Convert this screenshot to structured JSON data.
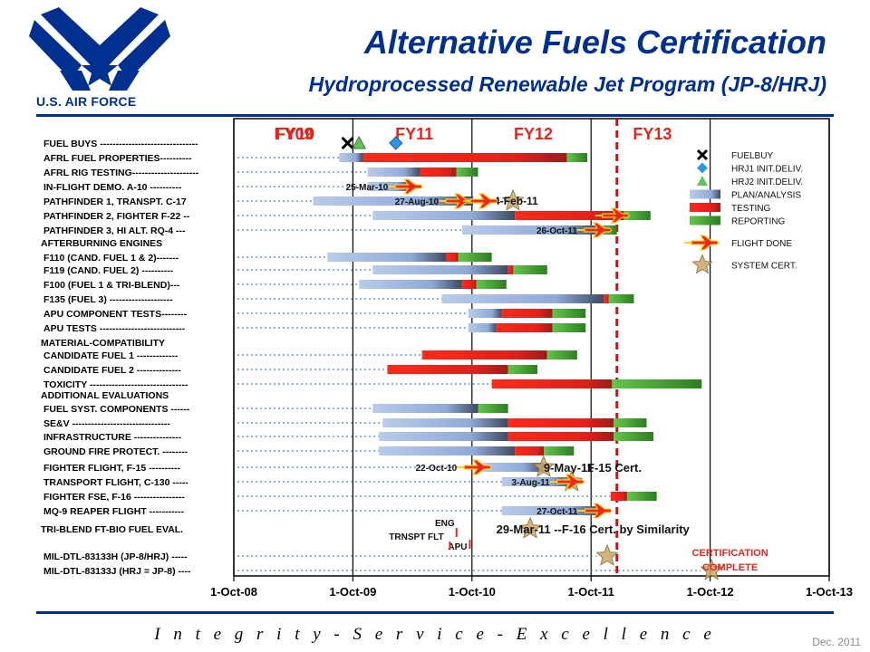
{
  "header": {
    "title": "Alternative Fuels Certification",
    "subtitle": "Hydroprocessed Renewable Jet Program (JP-8/HRJ)",
    "logo_text": "U.S. AIR FORCE"
  },
  "footer": {
    "motto": "I n t e g r i t y  -  S e r v i c e  -  E x c e l l e n c e",
    "date": "Dec. 2011"
  },
  "colors": {
    "plan": "#8fa9d8",
    "testing": "#e8231d",
    "reporting": "#4f9a2a",
    "flight": "#f0261d",
    "cert_star": "#c9a86a",
    "fy_label": "#e0261d",
    "brand": "#00308f"
  },
  "chart_data": {
    "type": "gantt",
    "x_axis": {
      "tick_labels": [
        "1-Oct-08",
        "1-Oct-09",
        "1-Oct-10",
        "1-Oct-11",
        "1-Oct-12",
        "1-Oct-13"
      ],
      "range": [
        "2008-10-01",
        "2013-10-01"
      ]
    },
    "fiscal_years": [
      "FY09",
      "FY10",
      "FY11",
      "FY12",
      "FY13"
    ],
    "legend": [
      {
        "label": "FUELBUY",
        "marker": "x"
      },
      {
        "label": "HRJ1 INIT.DELIV.",
        "marker": "diamond"
      },
      {
        "label": "HRJ2 INIT.DELIV.",
        "marker": "triangle"
      },
      {
        "label": "PLAN/ANALYSIS",
        "marker": "plan"
      },
      {
        "label": "TESTING",
        "marker": "testing"
      },
      {
        "label": "REPORTING",
        "marker": "reporting"
      },
      {
        "label": "FLIGHT DONE",
        "marker": "flight"
      },
      {
        "label": "SYSTEM CERT.",
        "marker": "star"
      }
    ],
    "rows": [
      {
        "label": "FUEL BUYS -------------------------------",
        "y": 158,
        "markers": [
          {
            "t": "x",
            "d": "2009-09-15"
          },
          {
            "t": "triangle",
            "d": "2009-10-20"
          },
          {
            "t": "diamond",
            "d": "2010-02-10"
          }
        ]
      },
      {
        "label": "AFRL FUEL PROPERTIES----------",
        "y": 174,
        "segments": [
          {
            "t": "plan",
            "s": "2009-08-20",
            "e": "2009-11-01"
          },
          {
            "t": "testing",
            "s": "2009-11-01",
            "e": "2011-07-20"
          },
          {
            "t": "reporting",
            "s": "2011-07-20",
            "e": "2011-09-20"
          }
        ]
      },
      {
        "label": "AFRL RIG TESTING---------------------",
        "y": 190,
        "segments": [
          {
            "t": "plan",
            "s": "2009-11-15",
            "e": "2010-04-25"
          },
          {
            "t": "testing",
            "s": "2010-04-25",
            "e": "2010-08-15"
          },
          {
            "t": "reporting",
            "s": "2010-08-15",
            "e": "2010-10-20"
          }
        ]
      },
      {
        "label": "IN-FLIGHT DEMO. A-10 ----------",
        "y": 206,
        "segments": [
          {
            "t": "plan",
            "s": "2009-11-15",
            "e": "2010-03-25"
          }
        ],
        "flights": [
          {
            "d": "2010-03-25",
            "label": "25-Mar-10",
            "label_side": "left"
          }
        ]
      },
      {
        "label": "PATHFINDER 1, TRANSPT. C-17",
        "y": 222,
        "segments": [
          {
            "t": "plan",
            "s": "2009-06-01",
            "e": "2010-10-05"
          }
        ],
        "flights": [
          {
            "d": "2010-08-27",
            "label": "27-Aug-10",
            "label_side": "left"
          },
          {
            "d": "2010-11-10",
            "label": "4-Feb-11",
            "label_side": "right"
          }
        ],
        "stars": [
          "2011-02-04"
        ]
      },
      {
        "label": "PATHFINDER 2, FIGHTER F-22 --",
        "y": 238,
        "segments": [
          {
            "t": "plan",
            "s": "2009-12-01",
            "e": "2011-02-10"
          },
          {
            "t": "testing",
            "s": "2011-02-10",
            "e": "2012-01-10"
          },
          {
            "t": "reporting",
            "s": "2012-01-10",
            "e": "2012-04-01"
          }
        ],
        "flights": [
          {
            "d": "2011-12-20",
            "label": "",
            "label_side": "right"
          }
        ]
      },
      {
        "label": "PATHFINDER 3, HI ALT. RQ-4 ---",
        "y": 254,
        "segments": [
          {
            "t": "plan",
            "s": "2010-09-01",
            "e": "2011-10-26"
          },
          {
            "t": "reporting",
            "s": "2011-10-26",
            "e": "2011-12-20"
          }
        ],
        "flights": [
          {
            "d": "2011-10-26",
            "label": "26-Oct-11",
            "label_side": "left"
          }
        ]
      },
      {
        "label": "AFTERBURNING ENGINES",
        "y": 268,
        "heading": true
      },
      {
        "label": "F110 (CAND. FUEL 1 & 2)-------",
        "y": 284,
        "segments": [
          {
            "t": "plan",
            "s": "2009-07-15",
            "e": "2010-07-15"
          },
          {
            "t": "testing",
            "s": "2010-07-15",
            "e": "2010-08-20"
          },
          {
            "t": "reporting",
            "s": "2010-08-20",
            "e": "2010-12-01"
          }
        ]
      },
      {
        "label": "F119 (CAND. FUEL 2) ----------",
        "y": 298,
        "segments": [
          {
            "t": "plan",
            "s": "2009-12-01",
            "e": "2011-01-20"
          },
          {
            "t": "testing",
            "s": "2011-01-20",
            "e": "2011-02-05"
          },
          {
            "t": "reporting",
            "s": "2011-02-05",
            "e": "2011-05-20"
          }
        ]
      },
      {
        "label": "F100 (FUEL 1 & TRI-BLEND)---",
        "y": 314,
        "segments": [
          {
            "t": "plan",
            "s": "2009-10-20",
            "e": "2010-09-01"
          },
          {
            "t": "testing",
            "s": "2010-09-01",
            "e": "2010-10-15"
          },
          {
            "t": "reporting",
            "s": "2010-10-15",
            "e": "2011-01-15"
          }
        ]
      },
      {
        "label": "F135 (FUEL 3) --------------------",
        "y": 330,
        "segments": [
          {
            "t": "plan",
            "s": "2010-07-01",
            "e": "2011-11-10"
          },
          {
            "t": "testing",
            "s": "2011-11-10",
            "e": "2011-11-25"
          },
          {
            "t": "reporting",
            "s": "2011-11-25",
            "e": "2012-02-10"
          }
        ]
      },
      {
        "label": "APU COMPONENT TESTS--------",
        "y": 346,
        "segments": [
          {
            "t": "plan",
            "s": "2010-09-20",
            "e": "2011-01-01"
          },
          {
            "t": "testing",
            "s": "2011-01-01",
            "e": "2011-06-05"
          },
          {
            "t": "reporting",
            "s": "2011-06-05",
            "e": "2011-09-15"
          }
        ]
      },
      {
        "label": "APU TESTS ---------------------------",
        "y": 362,
        "segments": [
          {
            "t": "plan",
            "s": "2010-09-20",
            "e": "2010-12-15"
          },
          {
            "t": "testing",
            "s": "2010-12-15",
            "e": "2011-06-05"
          },
          {
            "t": "reporting",
            "s": "2011-06-05",
            "e": "2011-09-15"
          }
        ]
      },
      {
        "label": "MATERIAL-COMPATIBILITY",
        "y": 378,
        "heading": true
      },
      {
        "label": "CANDIDATE FUEL 1 -------------",
        "y": 392,
        "segments": [
          {
            "t": "testing",
            "s": "2010-05-01",
            "e": "2011-05-20"
          },
          {
            "t": "reporting",
            "s": "2011-05-20",
            "e": "2011-08-20"
          }
        ]
      },
      {
        "label": "CANDIDATE FUEL 2 --------------",
        "y": 408,
        "segments": [
          {
            "t": "testing",
            "s": "2010-01-15",
            "e": "2011-01-20"
          },
          {
            "t": "reporting",
            "s": "2011-01-20",
            "e": "2011-04-20"
          }
        ]
      },
      {
        "label": "TOXICITY -------------------------------",
        "y": 424,
        "segments": [
          {
            "t": "testing",
            "s": "2010-12-01",
            "e": "2011-12-05"
          },
          {
            "t": "reporting",
            "s": "2011-12-05",
            "e": "2012-09-05"
          }
        ]
      },
      {
        "label": "ADDITIONAL EVALUATIONS",
        "y": 436,
        "heading": true
      },
      {
        "label": "FUEL SYST. COMPONENTS ------",
        "y": 451,
        "segments": [
          {
            "t": "plan",
            "s": "2009-12-01",
            "e": "2010-10-20"
          },
          {
            "t": "reporting",
            "s": "2010-10-20",
            "e": "2011-01-20"
          }
        ]
      },
      {
        "label": "SE&V -------------------------------",
        "y": 467,
        "segments": [
          {
            "t": "plan",
            "s": "2010-01-01",
            "e": "2011-01-20"
          },
          {
            "t": "testing",
            "s": "2011-01-20",
            "e": "2011-12-10"
          },
          {
            "t": "reporting",
            "s": "2011-12-10",
            "e": "2012-03-20"
          }
        ]
      },
      {
        "label": "INFRASTRUCTURE ---------------",
        "y": 482,
        "segments": [
          {
            "t": "plan",
            "s": "2009-12-20",
            "e": "2011-01-20"
          },
          {
            "t": "testing",
            "s": "2011-01-20",
            "e": "2011-12-10"
          },
          {
            "t": "reporting",
            "s": "2011-12-10",
            "e": "2012-04-10"
          }
        ]
      },
      {
        "label": "GROUND FIRE PROTECT. --------",
        "y": 498,
        "segments": [
          {
            "t": "plan",
            "s": "2009-12-20",
            "e": "2011-02-10"
          },
          {
            "t": "testing",
            "s": "2011-02-10",
            "e": "2011-05-10"
          },
          {
            "t": "reporting",
            "s": "2011-05-10",
            "e": "2011-08-10"
          }
        ]
      },
      {
        "label": "FIGHTER FLIGHT, F-15 ----------",
        "y": 516,
        "segments": [
          {
            "t": "plan",
            "s": "2010-10-22",
            "e": "2011-05-09"
          }
        ],
        "flights": [
          {
            "d": "2010-10-22",
            "label": "22-Oct-10",
            "label_side": "left"
          }
        ],
        "stars": [
          "2011-05-09"
        ],
        "annotations": [
          {
            "d": "2011-05-09",
            "text": "9-May-11"
          },
          {
            "d": "2011-09-20",
            "text": "F-15 Cert."
          }
        ]
      },
      {
        "label": "TRANSPORT FLIGHT, C-130 -----",
        "y": 532,
        "segments": [
          {
            "t": "plan",
            "s": "2011-01-01",
            "e": "2011-08-03"
          }
        ],
        "flights": [
          {
            "d": "2011-08-03",
            "label": "3-Aug-11",
            "label_side": "left"
          }
        ],
        "stars": [
          "2011-08-03"
        ]
      },
      {
        "label": "FIGHTER FSE, F-16 ----------------",
        "y": 548,
        "segments": [
          {
            "t": "testing",
            "s": "2011-12-01",
            "e": "2012-01-20"
          },
          {
            "t": "reporting",
            "s": "2012-01-20",
            "e": "2012-04-20"
          }
        ]
      },
      {
        "label": "MQ-9 REAPER FLIGHT -----------",
        "y": 564,
        "segments": [
          {
            "t": "plan",
            "s": "2011-01-01",
            "e": "2011-10-27"
          }
        ],
        "flights": [
          {
            "d": "2011-10-27",
            "label": "27-Oct-11",
            "label_side": "left"
          }
        ]
      },
      {
        "label": "TRI-BLEND FT-BIO FUEL EVAL.",
        "y": 584,
        "heading": true,
        "stars": [
          "2011-03-29"
        ],
        "annotations": [
          {
            "d": "2010-12-15",
            "text": "29-Mar-11 --F-16 Cert. by Similarity"
          }
        ]
      },
      {
        "label": "MIL-DTL-83133H (JP-8/HRJ) -----",
        "y": 614,
        "stars": [
          "2011-11-20"
        ]
      },
      {
        "label": "MIL-DTL-83133J (HRJ = JP-8) ----",
        "y": 630,
        "stars": [
          "2012-10-05"
        ]
      }
    ],
    "callouts": [
      {
        "text": "ENG",
        "d": "2010-06-10",
        "y": 581
      },
      {
        "text": "TRNSPT FLT",
        "d": "2010-01-20",
        "y": 596
      },
      {
        "text": "APU",
        "d": "2010-07-20",
        "y": 607
      }
    ],
    "cert_complete": [
      "CERTIFICATION",
      "COMPLETE"
    ],
    "current_date_line": "2011-12-20"
  }
}
